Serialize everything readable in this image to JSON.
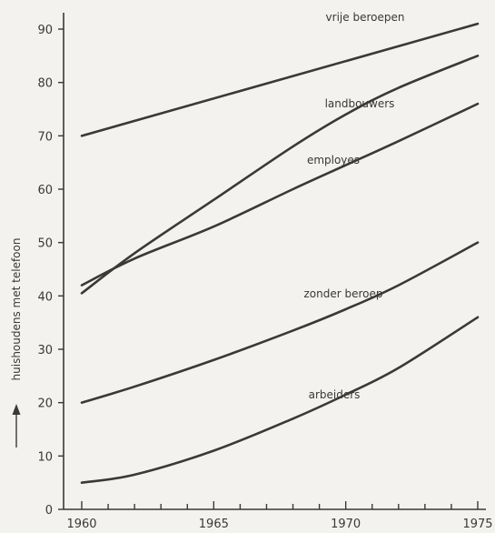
{
  "chart_data": {
    "type": "line",
    "title": "",
    "xlabel": "",
    "ylabel": "huishoudens met telefoon",
    "ylabel_arrow": "up-arrow-icon",
    "xlim": [
      1960,
      1975
    ],
    "ylim": [
      0,
      95
    ],
    "x_ticks": [
      1960,
      1965,
      1970,
      1975
    ],
    "y_ticks": [
      0,
      10,
      20,
      30,
      40,
      50,
      60,
      70,
      80,
      90
    ],
    "grid": false,
    "legend": "labels placed directly on lines",
    "series": [
      {
        "name": "vrije beroepen",
        "x": [
          1960,
          1975
        ],
        "y": [
          70,
          91
        ]
      },
      {
        "name": "landbouwers",
        "x": [
          1960,
          1962,
          1965,
          1968,
          1970,
          1972,
          1975
        ],
        "y": [
          40.5,
          48,
          58,
          68,
          74,
          79,
          85
        ]
      },
      {
        "name": "employes",
        "x": [
          1960,
          1962,
          1965,
          1968,
          1970,
          1972,
          1975
        ],
        "y": [
          42,
          47,
          53,
          60,
          64.5,
          69,
          76
        ]
      },
      {
        "name": "zonder beroep",
        "x": [
          1960,
          1962,
          1965,
          1968,
          1970,
          1972,
          1975
        ],
        "y": [
          20,
          23,
          28,
          33.5,
          37.5,
          42,
          50
        ]
      },
      {
        "name": "arbeiders",
        "x": [
          1960,
          1962,
          1965,
          1968,
          1970,
          1972,
          1975
        ],
        "y": [
          5,
          6.5,
          11,
          17,
          21.5,
          26.5,
          36
        ]
      }
    ]
  }
}
